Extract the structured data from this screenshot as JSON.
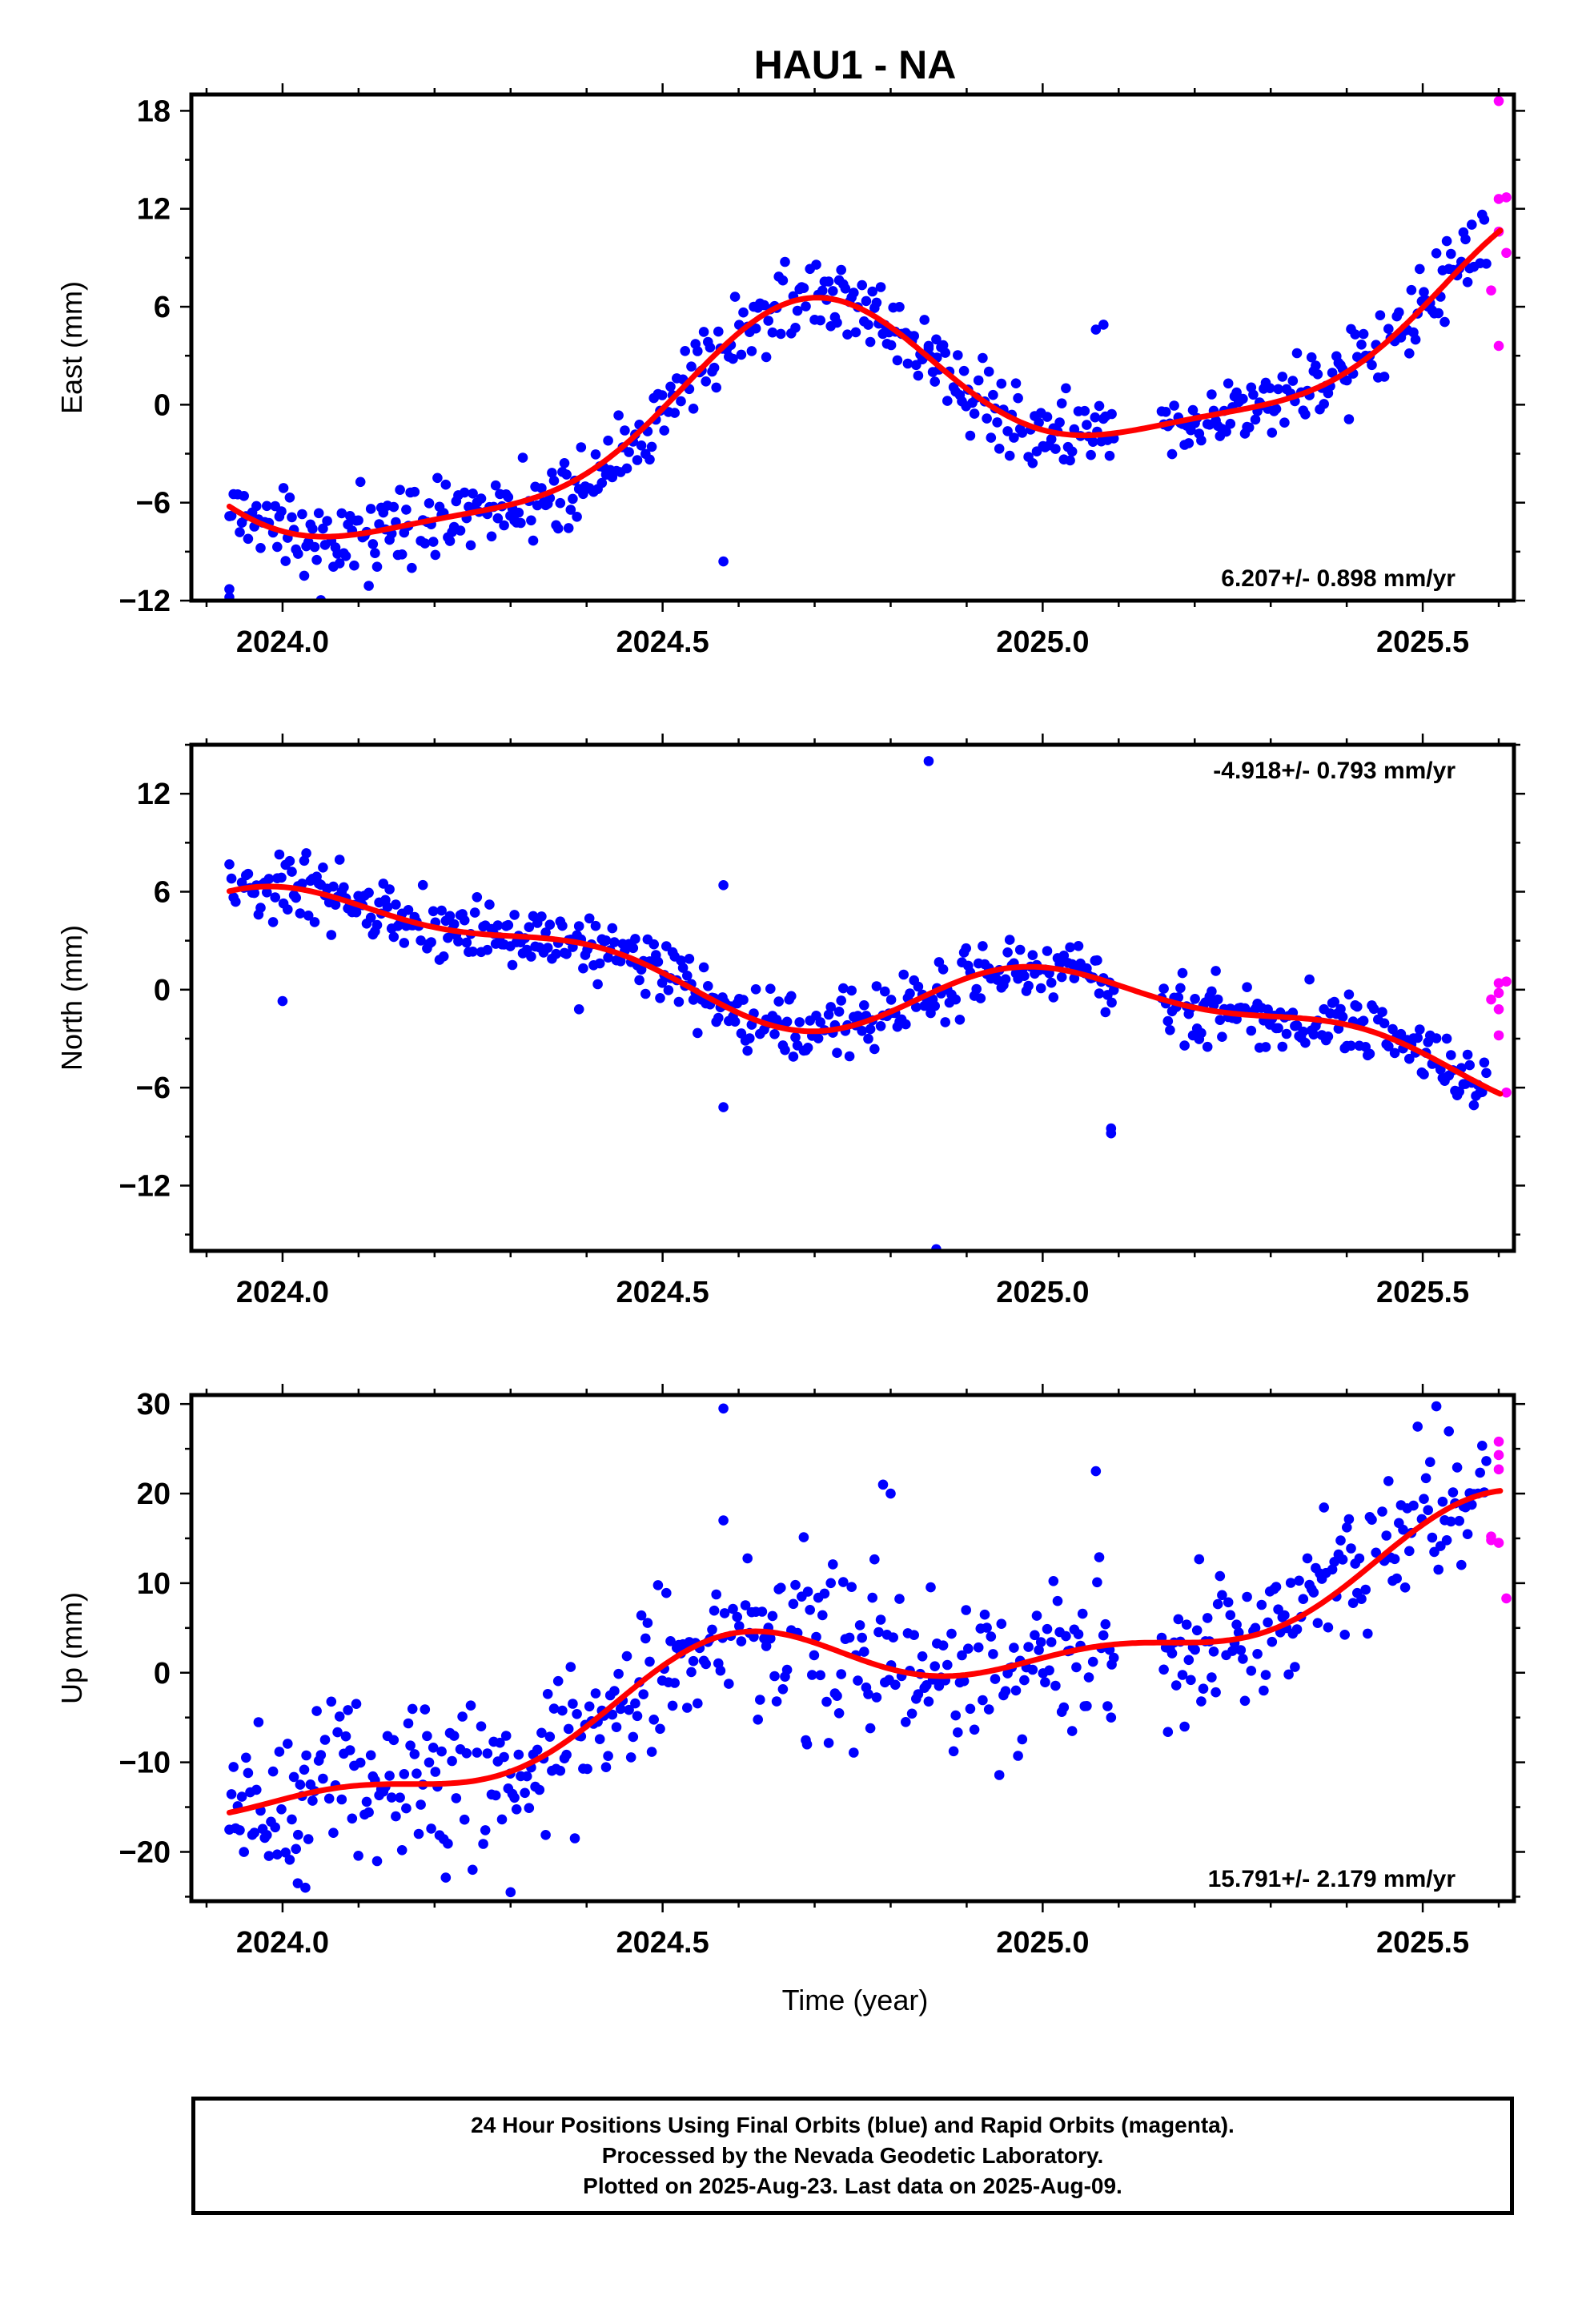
{
  "title": "HAU1 - NA",
  "colors": {
    "final": "#0000ff",
    "rapid": "#ff00ff",
    "fit": "#ff0000",
    "frame": "#000000"
  },
  "xaxis": {
    "label": "Time (year)",
    "range": [
      2023.88,
      2025.62
    ],
    "ticks": [
      2024.0,
      2024.5,
      2025.0,
      2025.5
    ],
    "tick_labels": [
      "2024.0",
      "2024.5",
      "2025.0",
      "2025.5"
    ]
  },
  "footer": {
    "line1": "24 Hour Positions Using Final Orbits (blue) and Rapid Orbits (magenta).",
    "line2": "Processed by the Nevada Geodetic Laboratory.",
    "line3": "Plotted on 2025-Aug-23. Last data on 2025-Aug-09."
  },
  "chart_data": [
    {
      "type": "scatter",
      "id": "east",
      "ylabel": "East (mm)",
      "ylim": [
        -12,
        19
      ],
      "yticks": [
        -12,
        -6,
        0,
        6,
        12,
        18
      ],
      "rate": "6.207+/- 0.898 mm/yr",
      "rate_position": "bottom-right",
      "fit": {
        "mean": 0.2,
        "trend": 6.207,
        "a1": -4.8,
        "b1": -2.2,
        "a2": 0.9,
        "b2": -1.1
      },
      "noise": 1.2,
      "outliers": [
        [
          2023.93,
          -11.3
        ],
        [
          2023.93,
          -11.8
        ],
        [
          2024.17,
          -10.0
        ],
        [
          2024.58,
          -9.6
        ],
        [
          2024.85,
          3.6
        ],
        [
          2024.86,
          4.0
        ],
        [
          2025.07,
          4.6
        ],
        [
          2025.08,
          4.9
        ],
        [
          2024.7,
          5.2
        ]
      ],
      "rapid": [
        [
          2025.6,
          18.6
        ],
        [
          2025.6,
          12.6
        ],
        [
          2025.61,
          12.7
        ],
        [
          2025.6,
          10.6
        ],
        [
          2025.61,
          9.3
        ],
        [
          2025.59,
          7.0
        ],
        [
          2025.6,
          3.6
        ]
      ]
    },
    {
      "type": "scatter",
      "id": "north",
      "ylabel": "North (mm)",
      "ylim": [
        -16,
        15
      ],
      "yticks": [
        -12,
        -6,
        0,
        6,
        12
      ],
      "rate": "-4.918+/- 0.793 mm/yr",
      "rate_position": "top-right",
      "fit": {
        "mean": 0.3,
        "trend": -4.918,
        "a1": 1.6,
        "b1": 1.4,
        "a2": -0.7,
        "b2": 0.9
      },
      "noise": 1.0,
      "outliers": [
        [
          2024.85,
          14.0
        ],
        [
          2024.86,
          -15.9
        ],
        [
          2025.09,
          -8.8
        ],
        [
          2025.09,
          -8.5
        ],
        [
          2024.58,
          -7.2
        ],
        [
          2024.58,
          6.4
        ],
        [
          2024.39,
          -1.2
        ],
        [
          2024.0,
          -0.7
        ]
      ],
      "rapid": [
        [
          2025.6,
          0.4
        ],
        [
          2025.61,
          0.5
        ],
        [
          2025.6,
          -0.2
        ],
        [
          2025.59,
          -0.6
        ],
        [
          2025.6,
          -1.2
        ],
        [
          2025.6,
          -2.8
        ],
        [
          2025.61,
          -6.3
        ]
      ]
    },
    {
      "type": "scatter",
      "id": "up",
      "ylabel": "Up (mm)",
      "ylim": [
        -25.5,
        31
      ],
      "yticks": [
        -20,
        -10,
        0,
        10,
        20,
        30
      ],
      "rate": "15.791+/- 2.179 mm/yr",
      "rate_position": "bottom-right",
      "fit": {
        "mean": 0.0,
        "trend": 15.791,
        "a1": -3.0,
        "b1": -3.5,
        "a2": 2.0,
        "b2": 1.2
      },
      "noise": 4.2,
      "outliers": [
        [
          2024.58,
          29.5
        ],
        [
          2024.58,
          17.0
        ],
        [
          2024.79,
          21.0
        ],
        [
          2024.8,
          20.0
        ],
        [
          2025.07,
          22.5
        ],
        [
          2024.02,
          -23.5
        ],
        [
          2024.03,
          -24.0
        ],
        [
          2024.3,
          -24.5
        ],
        [
          2024.25,
          -22.0
        ],
        [
          2024.69,
          -8.0
        ],
        [
          2025.09,
          -5.0
        ]
      ],
      "rapid": [
        [
          2025.6,
          25.8
        ],
        [
          2025.6,
          24.3
        ],
        [
          2025.6,
          22.7
        ],
        [
          2025.59,
          15.2
        ],
        [
          2025.6,
          14.5
        ],
        [
          2025.59,
          14.8
        ],
        [
          2025.61,
          8.3
        ]
      ]
    }
  ]
}
